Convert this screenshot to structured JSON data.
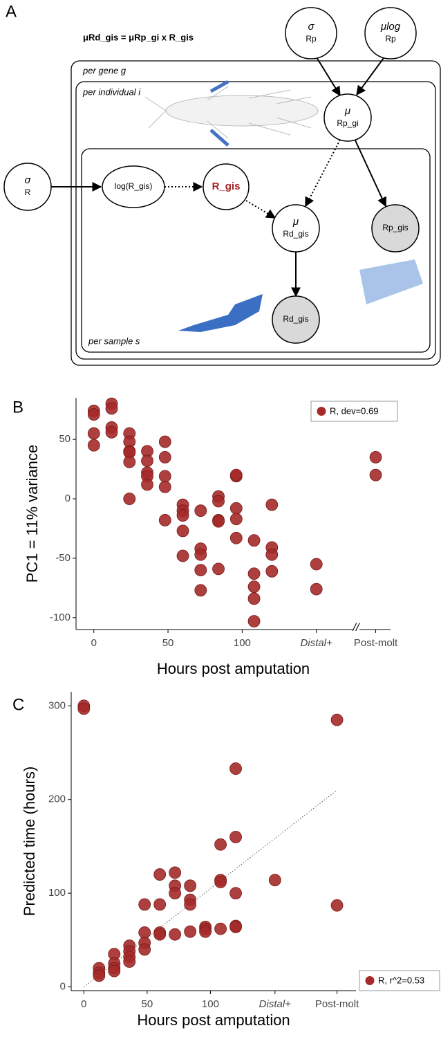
{
  "diagram": {
    "panel_label": "A",
    "formula": "μRd_gis =  μRp_gi x R_gis",
    "plates": [
      "per gene g",
      "per individual i",
      "per sample s"
    ],
    "nodes": [
      {
        "sym": "σ",
        "sub": "Rp"
      },
      {
        "sym": "μlog",
        "sub": "Rp"
      },
      {
        "sym": "μ",
        "sub": "Rp_gi"
      },
      {
        "sym": "σ",
        "sub": "R"
      },
      {
        "sym": "log(R_gis)"
      },
      {
        "sym": "R_gis"
      },
      {
        "sym": "μ",
        "sub": "Rd_gis"
      },
      {
        "sym": "Rp_gis"
      },
      {
        "sym": "Rd_gis"
      }
    ]
  },
  "chart_data": [
    {
      "type": "scatter",
      "panel_label": "B",
      "x_label": "Hours post amputation",
      "y_label": "PC1 = 11% variance",
      "xlim": [
        -12,
        200
      ],
      "ylim": [
        -110,
        85
      ],
      "xticks": [
        0,
        50,
        100,
        {
          "value": 150,
          "label": "Distal+"
        },
        {
          "value": 190,
          "label": "Post-molt"
        }
      ],
      "yticks": [
        -100,
        -50,
        0,
        50
      ],
      "legend": "top-right",
      "series": [
        {
          "name": "R, dev=0.69",
          "color": "#a52a2a",
          "x": [
            0,
            0,
            0,
            0,
            12,
            12,
            12,
            12,
            24,
            24,
            24,
            24,
            24,
            24,
            36,
            36,
            36,
            36,
            36,
            48,
            48,
            48,
            48,
            48,
            60,
            60,
            60,
            60,
            60,
            72,
            72,
            72,
            72,
            72,
            84,
            84,
            84,
            84,
            84,
            96,
            96,
            96,
            96,
            96,
            108,
            108,
            108,
            108,
            108,
            120,
            120,
            120,
            120,
            150,
            150,
            190,
            190
          ],
          "values": [
            74,
            71,
            55,
            45,
            80,
            76,
            60,
            56,
            55,
            48,
            40,
            39,
            31,
            0,
            40,
            32,
            22,
            19,
            12,
            48,
            35,
            19,
            10,
            -18,
            -5,
            -10,
            -14,
            -27,
            -48,
            -10,
            -42,
            -47,
            -60,
            -77,
            2,
            -2,
            -18,
            -19,
            -59,
            19,
            20,
            -8,
            -17,
            -33,
            -35,
            -63,
            -74,
            -84,
            -103,
            -5,
            -41,
            -47,
            -61,
            -55,
            -76,
            35,
            20
          ]
        }
      ]
    },
    {
      "type": "scatter",
      "panel_label": "C",
      "x_label": "Hours post amputation",
      "y_label": "Predicted time (hours)",
      "xlim": [
        -10,
        215
      ],
      "ylim": [
        -4,
        315
      ],
      "xticks": [
        0,
        50,
        100,
        {
          "value": 151,
          "label": "Distal+"
        },
        {
          "value": 200,
          "label": "Post-molt"
        }
      ],
      "yticks": [
        0,
        100,
        200,
        300
      ],
      "legend": "bottom-right",
      "trend_line": {
        "x": [
          0,
          200
        ],
        "y": [
          0,
          210
        ]
      },
      "series": [
        {
          "name": "R, r^2=0.53",
          "color": "#a52a2a",
          "x": [
            0,
            0,
            12,
            12,
            12,
            24,
            24,
            24,
            24,
            36,
            36,
            36,
            36,
            48,
            48,
            48,
            48,
            60,
            60,
            60,
            60,
            72,
            72,
            72,
            72,
            84,
            84,
            84,
            84,
            96,
            96,
            96,
            108,
            108,
            108,
            108,
            120,
            120,
            120,
            120,
            120,
            151,
            200,
            200
          ],
          "values": [
            300,
            297,
            20,
            15,
            12,
            35,
            25,
            20,
            17,
            44,
            38,
            32,
            27,
            88,
            58,
            47,
            40,
            120,
            88,
            58,
            56,
            122,
            108,
            100,
            56,
            108,
            93,
            88,
            59,
            64,
            62,
            59,
            152,
            114,
            112,
            62,
            233,
            160,
            100,
            65,
            64,
            114,
            285,
            87
          ]
        }
      ]
    }
  ]
}
